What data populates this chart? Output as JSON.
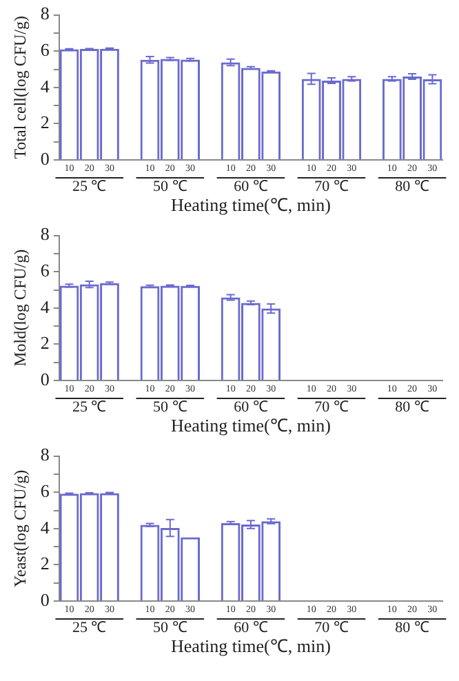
{
  "chart_data": [
    {
      "type": "bar",
      "ylabel": "Total cell(log CFU/g)",
      "xlabel": "Heating time(℃, min)",
      "categories": [
        "10",
        "20",
        "30",
        null,
        "10",
        "20",
        "30",
        null,
        "10",
        "20",
        "30",
        null,
        "10",
        "20",
        "30",
        null,
        "10",
        "20",
        "30"
      ],
      "values": [
        6.1,
        6.12,
        6.13,
        null,
        5.52,
        5.57,
        5.53,
        null,
        5.38,
        5.08,
        4.88,
        null,
        4.47,
        4.37,
        4.47,
        null,
        4.47,
        4.6,
        4.45
      ],
      "errors": [
        0.03,
        0.02,
        0.04,
        null,
        0.18,
        0.08,
        0.07,
        null,
        0.18,
        0.06,
        0.03,
        null,
        0.3,
        0.15,
        0.12,
        null,
        0.12,
        0.15,
        0.25
      ],
      "color": "#6a6ad0",
      "ylim": [
        0,
        8
      ],
      "yticks": [
        0,
        {
          "value": 1,
          "label": null
        },
        2,
        {
          "value": 3,
          "label": null
        },
        4,
        {
          "value": 5,
          "label": null
        },
        6,
        {
          "value": 7,
          "label": null
        },
        8
      ],
      "grid": false,
      "annotations": [
        "25 ℃",
        "50 ℃",
        "60 ℃",
        "70 ℃",
        "80 ℃"
      ]
    },
    {
      "type": "bar",
      "ylabel": "Mold(log CFU/g)",
      "xlabel": "Heating time(℃, min)",
      "categories": [
        "10",
        "20",
        "30",
        null,
        "10",
        "20",
        "30",
        null,
        "10",
        "20",
        "30",
        null,
        "10",
        "20",
        "30",
        null,
        "10",
        "20",
        "30"
      ],
      "values": [
        5.23,
        5.3,
        5.37,
        null,
        5.2,
        5.23,
        5.22,
        null,
        4.58,
        4.28,
        3.97,
        null,
        0,
        0,
        0,
        null,
        0,
        0,
        0
      ],
      "errors": [
        0.08,
        0.18,
        0.06,
        null,
        0.06,
        0.04,
        0.03,
        null,
        0.15,
        0.1,
        0.25,
        null,
        null,
        null,
        null,
        null,
        null,
        null,
        null
      ],
      "color": "#6a6ad0",
      "ylim": [
        0,
        8
      ],
      "yticks": [
        0,
        {
          "value": 1,
          "label": null
        },
        2,
        {
          "value": 3,
          "label": null
        },
        4,
        {
          "value": 5,
          "label": null
        },
        6,
        {
          "value": 7,
          "label": null
        },
        8
      ],
      "grid": false,
      "annotations": [
        "25 ℃",
        "50 ℃",
        "60 ℃",
        "70 ℃",
        "80 ℃"
      ]
    },
    {
      "type": "bar",
      "ylabel": "Yeast(log CFU/g)",
      "xlabel": "Heating time(℃, min)",
      "categories": [
        "10",
        "20",
        "30",
        null,
        "10",
        "20",
        "30",
        null,
        "10",
        "20",
        "30",
        null,
        "10",
        "20",
        "30",
        null,
        "10",
        "20",
        "30"
      ],
      "values": [
        5.92,
        5.95,
        5.95,
        null,
        4.2,
        4.03,
        3.52,
        null,
        4.3,
        4.22,
        4.4,
        null,
        0,
        0,
        0,
        null,
        0,
        0,
        0
      ],
      "errors": [
        0.03,
        0.02,
        0.04,
        null,
        0.08,
        0.47,
        null,
        null,
        0.08,
        0.22,
        0.13,
        null,
        null,
        null,
        null,
        null,
        null,
        null,
        null
      ],
      "color": "#6a6ad0",
      "ylim": [
        0,
        8
      ],
      "yticks": [
        0,
        {
          "value": 1,
          "label": null
        },
        2,
        {
          "value": 3,
          "label": null
        },
        4,
        {
          "value": 5,
          "label": null
        },
        6,
        {
          "value": 7,
          "label": null
        },
        8
      ],
      "grid": false,
      "annotations": [
        "25 ℃",
        "50 ℃",
        "60 ℃",
        "70 ℃",
        "80 ℃"
      ]
    }
  ]
}
